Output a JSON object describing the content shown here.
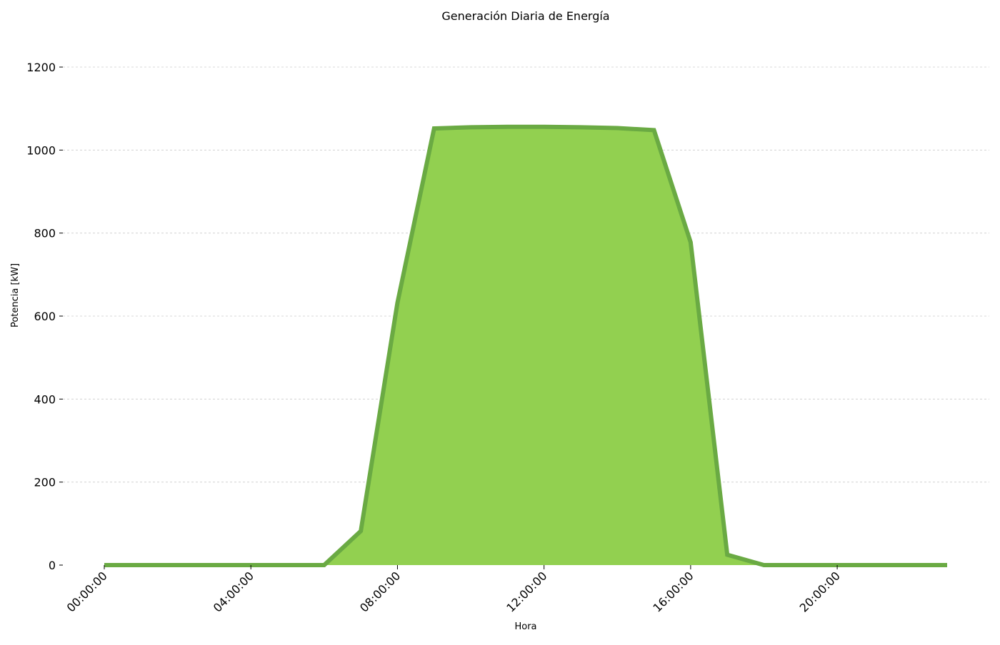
{
  "chart_data": {
    "type": "area",
    "title": "Generación Diaria de Energía",
    "xlabel": "Hora",
    "ylabel": "Potencia [kW]",
    "x_tick_labels": [
      "00:00:00",
      "04:00:00",
      "08:00:00",
      "12:00:00",
      "16:00:00",
      "20:00:00"
    ],
    "x_tick_hours": [
      0,
      4,
      8,
      12,
      16,
      20
    ],
    "y_ticks": [
      0,
      200,
      400,
      600,
      800,
      1000,
      1200
    ],
    "ylim": [
      0,
      1200
    ],
    "xlim_hours": [
      0,
      23
    ],
    "grid": "horizontal dashed",
    "series": [
      {
        "x_hours": [
          0,
          1,
          2,
          3,
          4,
          5,
          6,
          7,
          8,
          9,
          10,
          11,
          12,
          13,
          14,
          15,
          16,
          17,
          18,
          19,
          20,
          21,
          22,
          23
        ],
        "values": [
          0,
          0,
          0,
          0,
          0,
          0,
          0,
          82,
          632,
          1052,
          1055,
          1056,
          1056,
          1055,
          1053,
          1048,
          778,
          25,
          0,
          0,
          0,
          0,
          0,
          0
        ]
      }
    ],
    "colors": {
      "fill": "#92d050",
      "line": "#6aaa43"
    }
  }
}
